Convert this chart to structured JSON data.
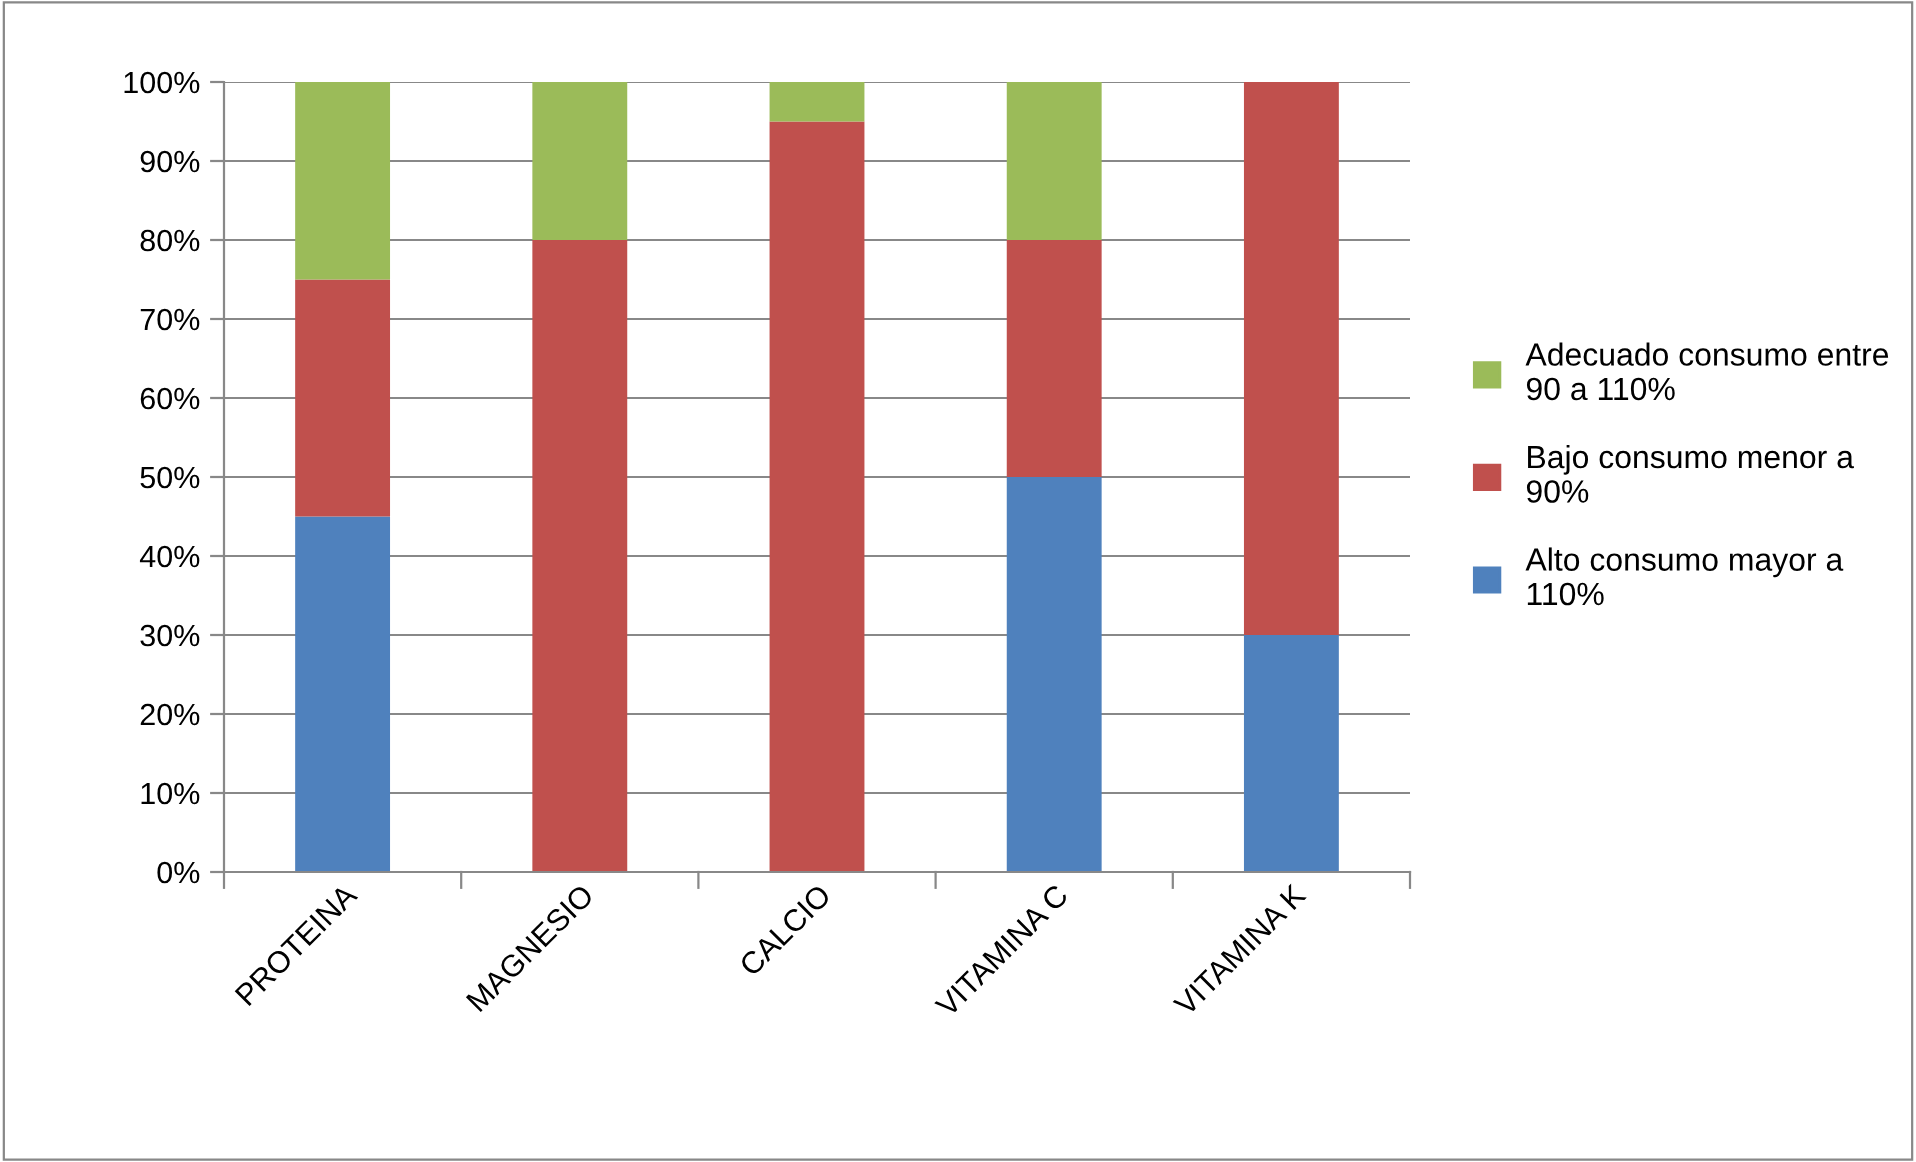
{
  "chart_data": {
    "type": "bar",
    "stacked": true,
    "categories": [
      "PROTEINA",
      "MAGNESIO",
      "CALCIO",
      "VITAMINA C",
      "VITAMINA K"
    ],
    "series": [
      {
        "name": "Alto consumo mayor a\n110%",
        "color": "#4f81bd",
        "values": [
          45,
          0,
          0,
          50,
          30
        ]
      },
      {
        "name": "Bajo consumo menor a\n90%",
        "color": "#c0504d",
        "values": [
          30,
          80,
          95,
          30,
          70
        ]
      },
      {
        "name": "Adecuado consumo entre\n90 a 110%",
        "color": "#9bbb59",
        "values": [
          25,
          20,
          5,
          20,
          0
        ]
      }
    ],
    "ylim": [
      0,
      100
    ],
    "yticks": [
      {
        "value": 0,
        "label": "0%"
      },
      {
        "value": 10,
        "label": "10%"
      },
      {
        "value": 20,
        "label": "20%"
      },
      {
        "value": 30,
        "label": "30%"
      },
      {
        "value": 40,
        "label": "40%"
      },
      {
        "value": 50,
        "label": "50%"
      },
      {
        "value": 60,
        "label": "60%"
      },
      {
        "value": 70,
        "label": "70%"
      },
      {
        "value": 80,
        "label": "80%"
      },
      {
        "value": 90,
        "label": "90%"
      },
      {
        "value": 100,
        "label": "100%"
      }
    ],
    "grid": "y",
    "legend": "right"
  }
}
